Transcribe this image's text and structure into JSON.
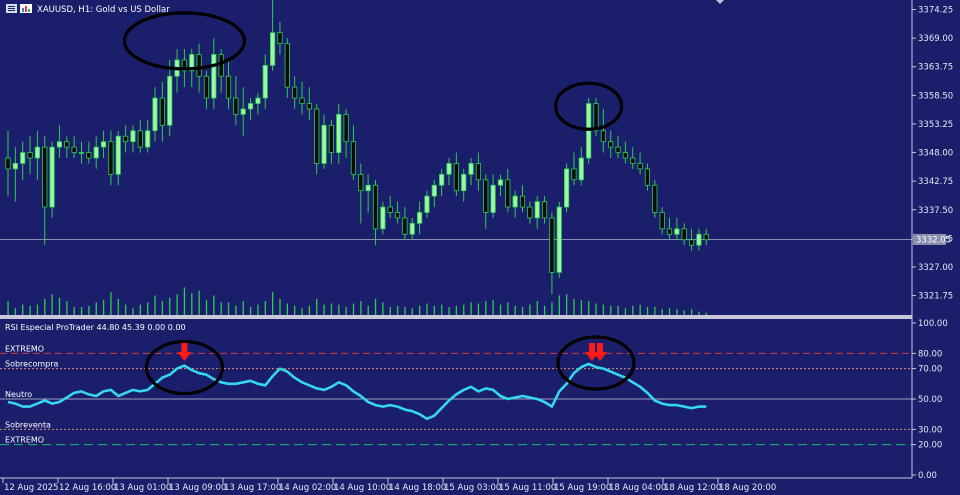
{
  "window": {
    "symbol_title": "XAUUSD, H1:  Gold vs US Dollar",
    "menu_icon": "list-icon",
    "chart_icon": "bar-chart-icon"
  },
  "colors": {
    "background": "#1a1e6b",
    "bull": "#9cf7a3",
    "bear": "#0a0a0a",
    "wick": "#2ccc56",
    "rsi": "#36d7f0",
    "extremo_line": "#d63a3a",
    "sobre_line": "#e09070",
    "neutro_line": "#9aa0c0",
    "extremo_low_line": "#18c36a",
    "arrow": "#ff1a1a",
    "circle": "#000000",
    "axis_text": "#e9ebf4",
    "separator": "#c8c8d8"
  },
  "price_axis": {
    "labels": [
      "3374.25",
      "3369.00",
      "3363.75",
      "3358.50",
      "3353.25",
      "3348.00",
      "3342.75",
      "3337.50",
      "3332.25",
      "3327.00",
      "3321.75"
    ],
    "current_price": "3332.05"
  },
  "rsi_panel": {
    "title": "RSI Especial ProTrader 44.80 45.39 0.00 0.00",
    "labels": {
      "extremo_top": "EXTREMO",
      "sobrecompra": "Sobrecompra",
      "neutro": "Neutro",
      "sobreventa": "Sobreventa",
      "extremo_bottom": "EXTREMO"
    },
    "axis_labels": [
      "100.00",
      "80.00",
      "70.00",
      "50.00",
      "30.00",
      "20.00",
      "0.00"
    ]
  },
  "time_axis": {
    "labels": [
      "12 Aug 2025",
      "12 Aug 16:00",
      "13 Aug 01:00",
      "13 Aug 09:00",
      "13 Aug 17:00",
      "14 Aug 02:00",
      "14 Aug 10:00",
      "14 Aug 18:00",
      "15 Aug 03:00",
      "15 Aug 11:00",
      "15 Aug 19:00",
      "18 Aug 04:00",
      "18 Aug 12:00",
      "18 Aug 20:00"
    ]
  },
  "chart_data": {
    "type": "candlestick",
    "price_ylim": [
      3318,
      3376
    ],
    "candles": [
      {
        "o": 3347,
        "h": 3352,
        "l": 3340,
        "c": 3345
      },
      {
        "o": 3345,
        "h": 3349,
        "l": 3339,
        "c": 3346
      },
      {
        "o": 3346,
        "h": 3350,
        "l": 3343,
        "c": 3348
      },
      {
        "o": 3348,
        "h": 3351,
        "l": 3344,
        "c": 3347
      },
      {
        "o": 3347,
        "h": 3352,
        "l": 3343,
        "c": 3349
      },
      {
        "o": 3349,
        "h": 3351,
        "l": 3331,
        "c": 3338
      },
      {
        "o": 3338,
        "h": 3350,
        "l": 3336,
        "c": 3349
      },
      {
        "o": 3349,
        "h": 3353,
        "l": 3347,
        "c": 3350
      },
      {
        "o": 3350,
        "h": 3351,
        "l": 3347,
        "c": 3349
      },
      {
        "o": 3349,
        "h": 3351,
        "l": 3347,
        "c": 3348
      },
      {
        "o": 3348,
        "h": 3350,
        "l": 3346,
        "c": 3348
      },
      {
        "o": 3348,
        "h": 3350,
        "l": 3346,
        "c": 3347
      },
      {
        "o": 3347,
        "h": 3351,
        "l": 3345,
        "c": 3349
      },
      {
        "o": 3349,
        "h": 3352,
        "l": 3347,
        "c": 3350
      },
      {
        "o": 3350,
        "h": 3352,
        "l": 3342,
        "c": 3344
      },
      {
        "o": 3344,
        "h": 3352,
        "l": 3342,
        "c": 3351
      },
      {
        "o": 3351,
        "h": 3353,
        "l": 3348,
        "c": 3350
      },
      {
        "o": 3350,
        "h": 3353,
        "l": 3348,
        "c": 3352
      },
      {
        "o": 3352,
        "h": 3354,
        "l": 3348,
        "c": 3349
      },
      {
        "o": 3349,
        "h": 3354,
        "l": 3348,
        "c": 3352
      },
      {
        "o": 3352,
        "h": 3360,
        "l": 3350,
        "c": 3358
      },
      {
        "o": 3358,
        "h": 3361,
        "l": 3350,
        "c": 3353
      },
      {
        "o": 3353,
        "h": 3365,
        "l": 3351,
        "c": 3362
      },
      {
        "o": 3362,
        "h": 3367,
        "l": 3359,
        "c": 3365
      },
      {
        "o": 3365,
        "h": 3367,
        "l": 3360,
        "c": 3363
      },
      {
        "o": 3363,
        "h": 3367,
        "l": 3360,
        "c": 3366
      },
      {
        "o": 3366,
        "h": 3368,
        "l": 3359,
        "c": 3362
      },
      {
        "o": 3362,
        "h": 3363,
        "l": 3356,
        "c": 3358
      },
      {
        "o": 3358,
        "h": 3369,
        "l": 3356,
        "c": 3366
      },
      {
        "o": 3366,
        "h": 3367,
        "l": 3359,
        "c": 3362
      },
      {
        "o": 3362,
        "h": 3365,
        "l": 3356,
        "c": 3358
      },
      {
        "o": 3358,
        "h": 3362,
        "l": 3353,
        "c": 3355
      },
      {
        "o": 3355,
        "h": 3360,
        "l": 3351,
        "c": 3356
      },
      {
        "o": 3356,
        "h": 3358,
        "l": 3354,
        "c": 3357
      },
      {
        "o": 3357,
        "h": 3359,
        "l": 3355,
        "c": 3358
      },
      {
        "o": 3358,
        "h": 3366,
        "l": 3356,
        "c": 3364
      },
      {
        "o": 3364,
        "h": 3376,
        "l": 3363,
        "c": 3370
      },
      {
        "o": 3370,
        "h": 3372,
        "l": 3366,
        "c": 3368
      },
      {
        "o": 3368,
        "h": 3369,
        "l": 3358,
        "c": 3360
      },
      {
        "o": 3360,
        "h": 3362,
        "l": 3356,
        "c": 3358
      },
      {
        "o": 3358,
        "h": 3361,
        "l": 3355,
        "c": 3357
      },
      {
        "o": 3357,
        "h": 3360,
        "l": 3354,
        "c": 3356
      },
      {
        "o": 3356,
        "h": 3357,
        "l": 3344,
        "c": 3346
      },
      {
        "o": 3346,
        "h": 3355,
        "l": 3345,
        "c": 3353
      },
      {
        "o": 3353,
        "h": 3354,
        "l": 3346,
        "c": 3348
      },
      {
        "o": 3348,
        "h": 3357,
        "l": 3346,
        "c": 3355
      },
      {
        "o": 3355,
        "h": 3356,
        "l": 3347,
        "c": 3350
      },
      {
        "o": 3350,
        "h": 3353,
        "l": 3343,
        "c": 3344
      },
      {
        "o": 3344,
        "h": 3346,
        "l": 3335,
        "c": 3341
      },
      {
        "o": 3341,
        "h": 3344,
        "l": 3337,
        "c": 3342
      },
      {
        "o": 3342,
        "h": 3343,
        "l": 3331,
        "c": 3334
      },
      {
        "o": 3334,
        "h": 3339,
        "l": 3333,
        "c": 3338
      },
      {
        "o": 3338,
        "h": 3340,
        "l": 3336,
        "c": 3337
      },
      {
        "o": 3337,
        "h": 3339,
        "l": 3335,
        "c": 3336
      },
      {
        "o": 3336,
        "h": 3338,
        "l": 3332,
        "c": 3333
      },
      {
        "o": 3333,
        "h": 3336,
        "l": 3332,
        "c": 3335
      },
      {
        "o": 3335,
        "h": 3339,
        "l": 3333,
        "c": 3337
      },
      {
        "o": 3337,
        "h": 3341,
        "l": 3336,
        "c": 3340
      },
      {
        "o": 3340,
        "h": 3343,
        "l": 3338,
        "c": 3342
      },
      {
        "o": 3342,
        "h": 3345,
        "l": 3340,
        "c": 3344
      },
      {
        "o": 3344,
        "h": 3347,
        "l": 3342,
        "c": 3346
      },
      {
        "o": 3346,
        "h": 3348,
        "l": 3340,
        "c": 3341
      },
      {
        "o": 3341,
        "h": 3345,
        "l": 3339,
        "c": 3344
      },
      {
        "o": 3344,
        "h": 3347,
        "l": 3342,
        "c": 3346
      },
      {
        "o": 3346,
        "h": 3348,
        "l": 3341,
        "c": 3343
      },
      {
        "o": 3343,
        "h": 3344,
        "l": 3334,
        "c": 3337
      },
      {
        "o": 3337,
        "h": 3344,
        "l": 3336,
        "c": 3342
      },
      {
        "o": 3342,
        "h": 3344,
        "l": 3340,
        "c": 3343
      },
      {
        "o": 3343,
        "h": 3345,
        "l": 3337,
        "c": 3338
      },
      {
        "o": 3338,
        "h": 3341,
        "l": 3336,
        "c": 3340
      },
      {
        "o": 3340,
        "h": 3342,
        "l": 3337,
        "c": 3338
      },
      {
        "o": 3338,
        "h": 3339,
        "l": 3335,
        "c": 3336
      },
      {
        "o": 3336,
        "h": 3340,
        "l": 3334,
        "c": 3339
      },
      {
        "o": 3339,
        "h": 3340,
        "l": 3335,
        "c": 3336
      },
      {
        "o": 3336,
        "h": 3337,
        "l": 3322,
        "c": 3326
      },
      {
        "o": 3326,
        "h": 3339,
        "l": 3325,
        "c": 3338
      },
      {
        "o": 3338,
        "h": 3346,
        "l": 3337,
        "c": 3345
      },
      {
        "o": 3345,
        "h": 3348,
        "l": 3342,
        "c": 3343
      },
      {
        "o": 3343,
        "h": 3349,
        "l": 3342,
        "c": 3347
      },
      {
        "o": 3347,
        "h": 3358,
        "l": 3346,
        "c": 3357
      },
      {
        "o": 3357,
        "h": 3358,
        "l": 3351,
        "c": 3352
      },
      {
        "o": 3352,
        "h": 3356,
        "l": 3348,
        "c": 3350
      },
      {
        "o": 3350,
        "h": 3352,
        "l": 3347,
        "c": 3349
      },
      {
        "o": 3349,
        "h": 3351,
        "l": 3347,
        "c": 3348
      },
      {
        "o": 3348,
        "h": 3350,
        "l": 3346,
        "c": 3347
      },
      {
        "o": 3347,
        "h": 3349,
        "l": 3345,
        "c": 3346
      },
      {
        "o": 3346,
        "h": 3348,
        "l": 3344,
        "c": 3345
      },
      {
        "o": 3345,
        "h": 3346,
        "l": 3341,
        "c": 3342
      },
      {
        "o": 3342,
        "h": 3343,
        "l": 3336,
        "c": 3337
      },
      {
        "o": 3337,
        "h": 3338,
        "l": 3333,
        "c": 3334
      },
      {
        "o": 3334,
        "h": 3336,
        "l": 3332,
        "c": 3333
      },
      {
        "o": 3333,
        "h": 3336,
        "l": 3332,
        "c": 3334
      },
      {
        "o": 3334,
        "h": 3335,
        "l": 3331,
        "c": 3332
      },
      {
        "o": 3332,
        "h": 3334,
        "l": 3330,
        "c": 3331
      },
      {
        "o": 3331,
        "h": 3334,
        "l": 3330,
        "c": 3333
      },
      {
        "o": 3333,
        "h": 3334,
        "l": 3331,
        "c": 3332
      }
    ],
    "volumes": [
      12,
      6,
      9,
      8,
      9,
      14,
      18,
      15,
      12,
      7,
      7,
      8,
      11,
      13,
      20,
      14,
      9,
      6,
      9,
      11,
      17,
      12,
      15,
      18,
      24,
      19,
      21,
      13,
      17,
      11,
      11,
      8,
      12,
      7,
      9,
      12,
      20,
      14,
      10,
      8,
      6,
      8,
      14,
      9,
      10,
      9,
      7,
      10,
      12,
      8,
      14,
      11,
      7,
      8,
      7,
      6,
      8,
      10,
      8,
      9,
      7,
      8,
      9,
      11,
      10,
      12,
      13,
      9,
      11,
      8,
      7,
      9,
      12,
      8,
      11,
      17,
      18,
      14,
      13,
      12,
      10,
      9,
      8,
      8,
      6,
      8,
      9,
      7,
      7,
      5,
      6,
      5,
      4,
      5,
      3,
      2
    ],
    "rsi": [
      48,
      47,
      45,
      45,
      47,
      49,
      47,
      48,
      51,
      54,
      55,
      53,
      52,
      55,
      56,
      52,
      54,
      56,
      55,
      56,
      60,
      64,
      66,
      70,
      72,
      69,
      67,
      66,
      63,
      61,
      60,
      60,
      61,
      62,
      60,
      59,
      65,
      70,
      68,
      64,
      61,
      59,
      57,
      56,
      58,
      61,
      59,
      55,
      52,
      48,
      46,
      45,
      46,
      45,
      43,
      42,
      40,
      37,
      39,
      44,
      49,
      53,
      56,
      58,
      55,
      57,
      56,
      52,
      50,
      51,
      52,
      51,
      50,
      48,
      45,
      55,
      60,
      67,
      71,
      73,
      71,
      70,
      68,
      66,
      64,
      61,
      58,
      54,
      49,
      47,
      46,
      46,
      45,
      44,
      45,
      45
    ],
    "rsi_levels": {
      "extremo_top": 80,
      "sobrecompra": 70,
      "neutro": 50,
      "sobreventa": 30,
      "extremo_bottom": 20
    },
    "rsi_ylim": [
      0,
      100
    ],
    "annotations": {
      "price_ellipses": [
        {
          "center_index": 24,
          "price": 3368.5
        },
        {
          "center_index": 79,
          "price": 3356.5
        }
      ],
      "rsi_ellipses": [
        {
          "center_index": 24,
          "rsi": 72
        },
        {
          "center_index": 80,
          "rsi": 75
        }
      ],
      "down_arrows": [
        {
          "index": 24,
          "count": 1
        },
        {
          "index": 80,
          "count": 2
        }
      ]
    }
  }
}
